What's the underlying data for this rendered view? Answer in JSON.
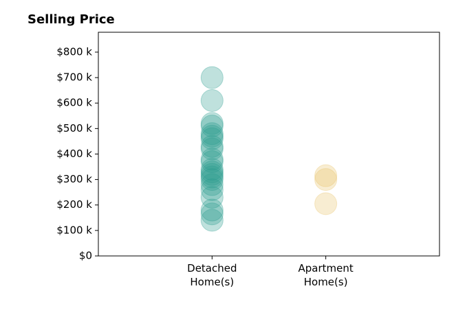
{
  "chart_data": {
    "type": "strip",
    "title": "Selling Price",
    "categories": [
      "Detached\nHome(s)",
      "Apartment\nHome(s)"
    ],
    "values": [
      [
        700000,
        610000,
        520000,
        510000,
        480000,
        470000,
        460000,
        430000,
        420000,
        380000,
        370000,
        340000,
        330000,
        320000,
        310000,
        300000,
        280000,
        260000,
        230000,
        180000,
        165000,
        140000
      ],
      [
        315000,
        300000,
        205000
      ]
    ],
    "colors": [
      "#2a9d8f",
      "#e9c46a"
    ],
    "ylim": [
      0,
      878000
    ],
    "yticks": [
      {
        "value": 0,
        "label": "$0"
      },
      {
        "value": 100000,
        "label": "$100 k"
      },
      {
        "value": 200000,
        "label": "$200 k"
      },
      {
        "value": 300000,
        "label": "$300 k"
      },
      {
        "value": 400000,
        "label": "$400 k"
      },
      {
        "value": 500000,
        "label": "$500 k"
      },
      {
        "value": 600000,
        "label": "$600 k"
      },
      {
        "value": 700000,
        "label": "$700 k"
      },
      {
        "value": 800000,
        "label": "$800 k"
      }
    ]
  }
}
